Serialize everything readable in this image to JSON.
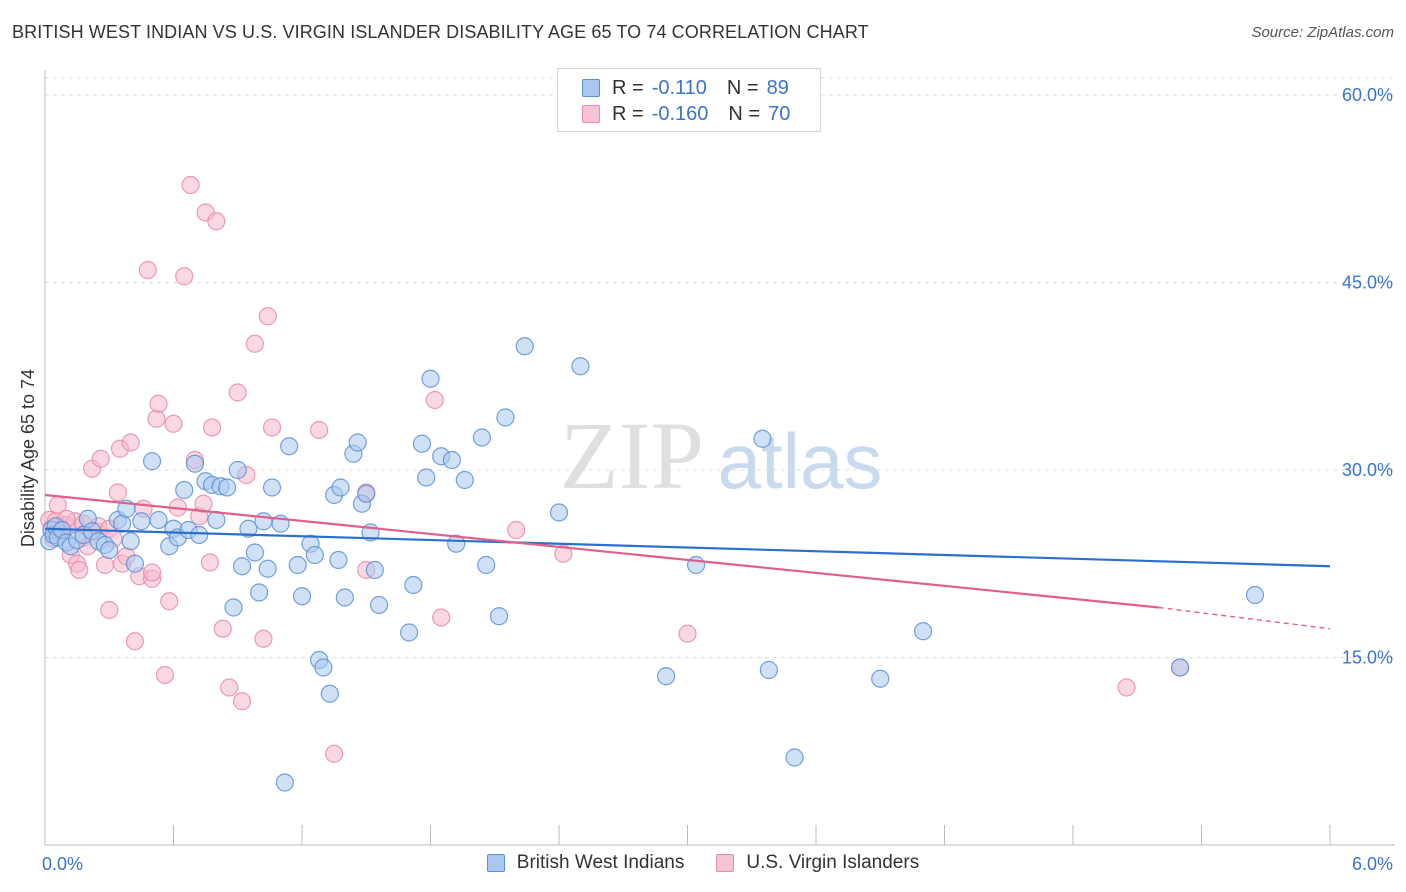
{
  "title": "BRITISH WEST INDIAN VS U.S. VIRGIN ISLANDER DISABILITY AGE 65 TO 74 CORRELATION CHART",
  "source": "Source: ZipAtlas.com",
  "watermark": {
    "zip": "ZIP",
    "atlas": "atlas"
  },
  "legend": {
    "rows": [
      {
        "r_label": "R =",
        "r_value": "-0.110",
        "n_label": "N =",
        "n_value": "89"
      },
      {
        "r_label": "R =",
        "r_value": "-0.160",
        "n_label": "N =",
        "n_value": "70"
      }
    ]
  },
  "bottom_legend": [
    "British West Indians",
    "U.S. Virgin Islanders"
  ],
  "colors": {
    "blue_fill": "#aac8ef",
    "blue_stroke": "#5b8fd6",
    "blue_line": "#2d6fcc",
    "pink_fill": "#f5b8cb",
    "pink_stroke": "#e98aa8",
    "pink_line": "#e0608c",
    "tick": "#3b74c9",
    "grid": "#dcdcdc"
  },
  "chart_data": {
    "type": "scatter",
    "title": "BRITISH WEST INDIAN VS U.S. VIRGIN ISLANDER DISABILITY AGE 65 TO 74 CORRELATION CHART",
    "xlabel": "",
    "ylabel": "Disability Age 65 to 74",
    "xlim": [
      0,
      6
    ],
    "ylim": [
      0,
      62
    ],
    "x_tick_labels": [
      "0.0%",
      "6.0%"
    ],
    "y_ticks": [
      15,
      30,
      45,
      60
    ],
    "y_tick_labels": [
      "15.0%",
      "30.0%",
      "45.0%",
      "60.0%"
    ],
    "grid": true,
    "legend_position": "top-center",
    "series": [
      {
        "name": "British West Indians",
        "r": -0.11,
        "n": 89,
        "trend": {
          "x": [
            0.0,
            6.0
          ],
          "y": [
            25.3,
            22.3
          ]
        },
        "points": [
          [
            0.02,
            24.3
          ],
          [
            0.03,
            25.2
          ],
          [
            0.04,
            24.8
          ],
          [
            0.05,
            25.5
          ],
          [
            0.06,
            24.6
          ],
          [
            0.08,
            25.2
          ],
          [
            0.1,
            24.2
          ],
          [
            0.12,
            23.9
          ],
          [
            0.15,
            24.4
          ],
          [
            0.18,
            24.8
          ],
          [
            0.2,
            26.1
          ],
          [
            0.22,
            25.1
          ],
          [
            0.25,
            24.3
          ],
          [
            0.28,
            24.0
          ],
          [
            0.3,
            23.6
          ],
          [
            0.34,
            26.0
          ],
          [
            0.36,
            25.7
          ],
          [
            0.38,
            26.9
          ],
          [
            0.4,
            24.3
          ],
          [
            0.42,
            22.5
          ],
          [
            0.45,
            25.9
          ],
          [
            0.5,
            30.7
          ],
          [
            0.53,
            26.0
          ],
          [
            0.58,
            23.9
          ],
          [
            0.6,
            25.3
          ],
          [
            0.62,
            24.6
          ],
          [
            0.65,
            28.4
          ],
          [
            0.67,
            25.2
          ],
          [
            0.7,
            30.5
          ],
          [
            0.72,
            24.8
          ],
          [
            0.75,
            29.1
          ],
          [
            0.78,
            28.8
          ],
          [
            0.8,
            26.0
          ],
          [
            0.82,
            28.7
          ],
          [
            0.85,
            28.6
          ],
          [
            0.88,
            19.0
          ],
          [
            0.9,
            30.0
          ],
          [
            0.92,
            22.3
          ],
          [
            0.95,
            25.3
          ],
          [
            0.98,
            23.4
          ],
          [
            1.0,
            20.2
          ],
          [
            1.02,
            25.9
          ],
          [
            1.04,
            22.1
          ],
          [
            1.06,
            28.6
          ],
          [
            1.1,
            25.7
          ],
          [
            1.12,
            5.0
          ],
          [
            1.14,
            31.9
          ],
          [
            1.18,
            22.4
          ],
          [
            1.2,
            19.9
          ],
          [
            1.24,
            24.1
          ],
          [
            1.26,
            23.2
          ],
          [
            1.28,
            14.8
          ],
          [
            1.3,
            14.2
          ],
          [
            1.33,
            12.1
          ],
          [
            1.35,
            28.0
          ],
          [
            1.37,
            22.8
          ],
          [
            1.38,
            28.6
          ],
          [
            1.4,
            19.8
          ],
          [
            1.44,
            31.3
          ],
          [
            1.46,
            32.2
          ],
          [
            1.48,
            27.3
          ],
          [
            1.5,
            28.1
          ],
          [
            1.52,
            25.0
          ],
          [
            1.54,
            22.0
          ],
          [
            1.56,
            19.2
          ],
          [
            1.7,
            17.0
          ],
          [
            1.72,
            20.8
          ],
          [
            1.76,
            32.1
          ],
          [
            1.78,
            29.4
          ],
          [
            1.8,
            37.3
          ],
          [
            1.85,
            31.1
          ],
          [
            1.9,
            30.8
          ],
          [
            1.92,
            24.1
          ],
          [
            1.96,
            29.2
          ],
          [
            2.04,
            32.6
          ],
          [
            2.06,
            22.4
          ],
          [
            2.12,
            18.3
          ],
          [
            2.15,
            34.2
          ],
          [
            2.24,
            39.9
          ],
          [
            2.4,
            26.6
          ],
          [
            2.5,
            38.3
          ],
          [
            2.9,
            13.5
          ],
          [
            3.04,
            22.4
          ],
          [
            3.35,
            32.5
          ],
          [
            3.38,
            14.0
          ],
          [
            3.5,
            7.0
          ],
          [
            3.9,
            13.3
          ],
          [
            4.1,
            17.1
          ],
          [
            5.3,
            14.2
          ],
          [
            5.65,
            20.0
          ]
        ]
      },
      {
        "name": "U.S. Virgin Islanders",
        "r": -0.16,
        "n": 70,
        "trend": {
          "x": [
            0.0,
            5.2
          ],
          "y": [
            28.0,
            19.0
          ]
        },
        "trend_dashed": {
          "x": [
            5.2,
            6.0
          ],
          "y": [
            19.0,
            17.3
          ]
        },
        "points": [
          [
            0.02,
            26.0
          ],
          [
            0.03,
            25.3
          ],
          [
            0.04,
            24.5
          ],
          [
            0.05,
            25.9
          ],
          [
            0.06,
            27.2
          ],
          [
            0.07,
            25.1
          ],
          [
            0.08,
            25.3
          ],
          [
            0.1,
            25.6
          ],
          [
            0.12,
            23.2
          ],
          [
            0.14,
            25.9
          ],
          [
            0.15,
            22.5
          ],
          [
            0.16,
            22.0
          ],
          [
            0.18,
            24.6
          ],
          [
            0.2,
            23.9
          ],
          [
            0.22,
            30.1
          ],
          [
            0.24,
            25.1
          ],
          [
            0.25,
            25.5
          ],
          [
            0.26,
            30.9
          ],
          [
            0.28,
            22.4
          ],
          [
            0.3,
            18.8
          ],
          [
            0.3,
            25.3
          ],
          [
            0.32,
            24.5
          ],
          [
            0.34,
            28.2
          ],
          [
            0.35,
            31.7
          ],
          [
            0.36,
            22.5
          ],
          [
            0.38,
            23.1
          ],
          [
            0.4,
            32.2
          ],
          [
            0.42,
            16.3
          ],
          [
            0.44,
            21.5
          ],
          [
            0.46,
            26.9
          ],
          [
            0.48,
            46.0
          ],
          [
            0.5,
            21.3
          ],
          [
            0.5,
            21.8
          ],
          [
            0.52,
            34.1
          ],
          [
            0.53,
            35.3
          ],
          [
            0.56,
            13.6
          ],
          [
            0.58,
            19.5
          ],
          [
            0.6,
            33.7
          ],
          [
            0.62,
            27.0
          ],
          [
            0.65,
            45.5
          ],
          [
            0.68,
            52.8
          ],
          [
            0.7,
            30.8
          ],
          [
            0.72,
            26.3
          ],
          [
            0.74,
            27.3
          ],
          [
            0.75,
            50.6
          ],
          [
            0.77,
            22.6
          ],
          [
            0.78,
            33.4
          ],
          [
            0.8,
            49.9
          ],
          [
            0.83,
            17.3
          ],
          [
            0.86,
            12.6
          ],
          [
            0.9,
            36.2
          ],
          [
            0.92,
            11.5
          ],
          [
            0.94,
            29.6
          ],
          [
            0.98,
            40.1
          ],
          [
            1.02,
            16.5
          ],
          [
            1.04,
            42.3
          ],
          [
            1.06,
            33.4
          ],
          [
            1.28,
            33.2
          ],
          [
            1.35,
            7.3
          ],
          [
            1.5,
            22.0
          ],
          [
            1.5,
            28.2
          ],
          [
            1.82,
            35.6
          ],
          [
            1.85,
            18.2
          ],
          [
            2.2,
            25.2
          ],
          [
            2.42,
            23.3
          ],
          [
            3.0,
            16.9
          ],
          [
            5.05,
            12.6
          ],
          [
            5.3,
            14.2
          ],
          [
            0.1,
            26.1
          ],
          [
            0.18,
            25.7
          ]
        ]
      }
    ]
  }
}
